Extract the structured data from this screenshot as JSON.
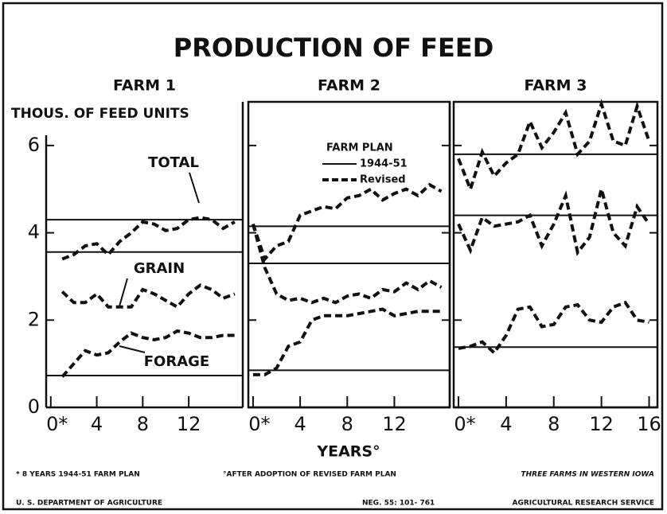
{
  "title": "PRODUCTION OF FEED",
  "y_label": "THOUS. OF FEED UNITS",
  "x_label": "YEARS°",
  "legend": {
    "title": "FARM PLAN",
    "entries": [
      {
        "name": "1944-51",
        "style": "solid"
      },
      {
        "name": "Revised",
        "style": "dashed"
      }
    ]
  },
  "footnotes": [
    "* 8 YEARS 1944-51 FARM PLAN",
    "°AFTER ADOPTION OF REVISED FARM PLAN",
    "THREE FARMS IN WESTERN IOWA"
  ],
  "credits": [
    "U. S. DEPARTMENT OF AGRICULTURE",
    "NEG. 55: 101- 761",
    "AGRICULTURAL RESEARCH SERVICE"
  ],
  "chart_data": [
    {
      "type": "line",
      "subtitle": "FARM 1",
      "xlim": [
        -0.4,
        16.7
      ],
      "ylim": [
        0,
        7
      ],
      "show_ytick_labels": true,
      "xticks": [
        {
          "value": 0,
          "label": "0*"
        },
        4,
        8,
        12
      ],
      "yticks": [
        0,
        2,
        4,
        6
      ],
      "x": [
        0,
        1,
        2,
        3,
        4,
        5,
        6,
        7,
        8,
        9,
        10,
        11,
        12,
        13,
        14,
        15,
        16
      ],
      "series": [
        {
          "name": "TOTAL",
          "plan": 4.3,
          "values": [
            null,
            3.4,
            3.5,
            3.7,
            3.75,
            3.5,
            3.8,
            4.0,
            4.25,
            4.2,
            4.05,
            4.1,
            4.3,
            4.35,
            4.3,
            4.1,
            4.25
          ]
        },
        {
          "name": "GRAIN",
          "plan": 3.56,
          "values": [
            null,
            2.65,
            2.4,
            2.4,
            2.6,
            2.3,
            2.3,
            2.3,
            2.7,
            2.6,
            2.45,
            2.3,
            2.6,
            2.8,
            2.7,
            2.5,
            2.6
          ]
        },
        {
          "name": "FORAGE",
          "plan": 0.73,
          "values": [
            null,
            0.7,
            1.0,
            1.3,
            1.2,
            1.25,
            1.5,
            1.7,
            1.6,
            1.55,
            1.6,
            1.75,
            1.7,
            1.6,
            1.6,
            1.65,
            1.65
          ]
        }
      ]
    },
    {
      "type": "line",
      "subtitle": "FARM 2",
      "xlim": [
        -0.4,
        16.7
      ],
      "ylim": [
        0,
        7
      ],
      "show_ytick_labels": false,
      "xticks": [
        {
          "value": 0,
          "label": "0*"
        },
        4,
        8,
        12
      ],
      "yticks": [
        2,
        4,
        6
      ],
      "x": [
        0,
        1,
        2,
        3,
        4,
        5,
        6,
        7,
        8,
        9,
        10,
        11,
        12,
        13,
        14,
        15,
        16
      ],
      "series": [
        {
          "plan": 4.15,
          "values": [
            4.2,
            3.4,
            3.7,
            3.8,
            4.4,
            4.5,
            4.6,
            4.55,
            4.8,
            4.85,
            5.0,
            4.75,
            4.9,
            5.0,
            4.85,
            5.1,
            4.95
          ]
        },
        {
          "plan": 3.3,
          "values": [
            4.2,
            3.2,
            2.6,
            2.45,
            2.5,
            2.4,
            2.5,
            2.4,
            2.55,
            2.6,
            2.5,
            2.7,
            2.65,
            2.85,
            2.7,
            2.9,
            2.75
          ]
        },
        {
          "plan": 0.85,
          "values": [
            0.75,
            0.75,
            0.9,
            1.4,
            1.5,
            2.0,
            2.1,
            2.1,
            2.1,
            2.15,
            2.2,
            2.25,
            2.1,
            2.15,
            2.2,
            2.2,
            2.2
          ]
        }
      ]
    },
    {
      "type": "line",
      "subtitle": "FARM 3",
      "xlim": [
        -0.4,
        16.7
      ],
      "ylim": [
        0,
        7
      ],
      "show_ytick_labels": false,
      "xticks": [
        {
          "value": 0,
          "label": "0*"
        },
        4,
        8,
        12,
        16
      ],
      "yticks": [
        2,
        4,
        6
      ],
      "x": [
        0,
        1,
        2,
        3,
        4,
        5,
        6,
        7,
        8,
        9,
        10,
        11,
        12,
        13,
        14,
        15,
        16
      ],
      "series": [
        {
          "plan": 5.8,
          "values": [
            5.7,
            5.0,
            5.85,
            5.3,
            5.6,
            5.8,
            6.55,
            5.95,
            6.3,
            6.75,
            5.8,
            6.1,
            6.95,
            6.1,
            6.0,
            6.9,
            6.1
          ]
        },
        {
          "plan": 4.4,
          "values": [
            4.2,
            3.6,
            4.35,
            4.15,
            4.2,
            4.25,
            4.4,
            3.7,
            4.2,
            4.85,
            3.55,
            3.9,
            5.0,
            4.0,
            3.7,
            4.6,
            4.2
          ]
        },
        {
          "plan": 1.38,
          "values": [
            1.35,
            1.4,
            1.5,
            1.25,
            1.65,
            2.25,
            2.3,
            1.85,
            1.9,
            2.3,
            2.35,
            2.0,
            1.95,
            2.3,
            2.4,
            2.0,
            1.95
          ]
        }
      ]
    }
  ]
}
